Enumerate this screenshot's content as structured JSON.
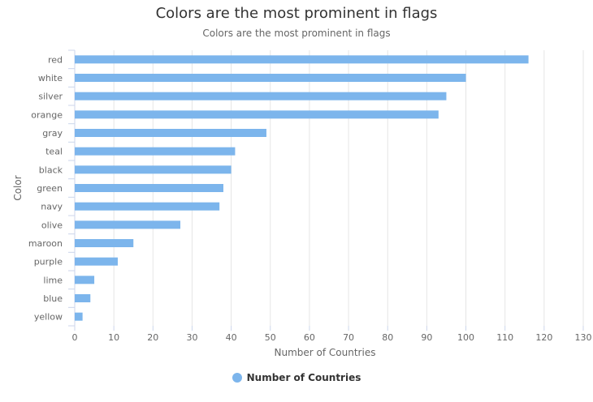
{
  "chart_data": {
    "type": "bar",
    "orientation": "horizontal",
    "title": "Colors are the most prominent in flags",
    "subtitle": "Colors are the most prominent in flags",
    "xlabel": "Number of Countries",
    "ylabel": "Color",
    "categories": [
      "red",
      "white",
      "silver",
      "orange",
      "gray",
      "teal",
      "black",
      "green",
      "navy",
      "olive",
      "maroon",
      "purple",
      "lime",
      "blue",
      "yellow"
    ],
    "series": [
      {
        "name": "Number of Countries",
        "values": [
          116,
          100,
          95,
          93,
          49,
          41,
          40,
          38,
          37,
          27,
          15,
          11,
          5,
          4,
          2
        ]
      }
    ],
    "xlim": [
      0,
      130
    ],
    "ticks": [
      "0",
      "10",
      "20",
      "30",
      "40",
      "50",
      "60",
      "70",
      "80",
      "90",
      "100",
      "110",
      "120",
      "130"
    ],
    "grid": true,
    "legend": "bottom",
    "colors": {
      "bar": "#7cb5ec",
      "grid": "#e6e6e6",
      "axis": "#ccd6eb"
    }
  }
}
